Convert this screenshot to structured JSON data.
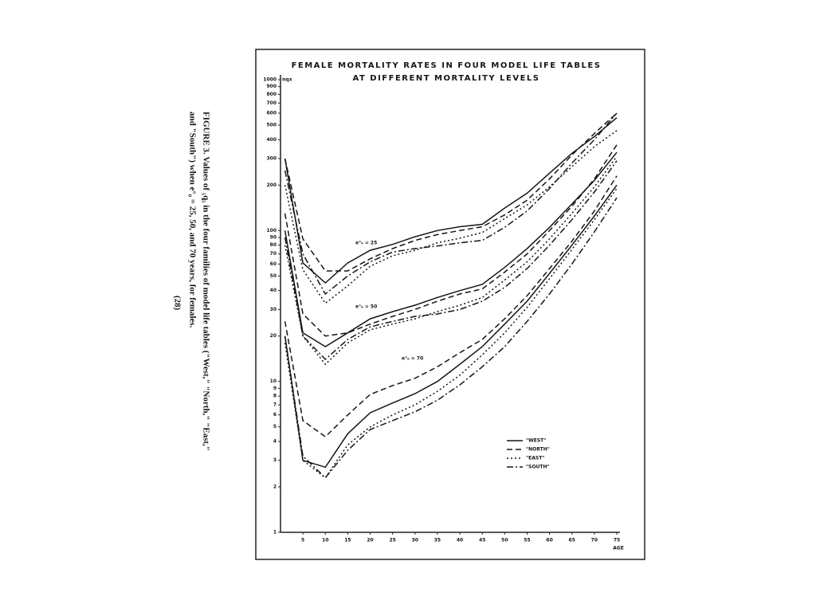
{
  "chart_data": {
    "type": "line",
    "title_lines": [
      "FEMALE MORTALITY RATES IN FOUR MODEL LIFE TABLES",
      "AT DIFFERENT MORTALITY LEVELS"
    ],
    "y_label": "nqx",
    "x_label": "AGE",
    "log_y": true,
    "color": "#151515",
    "xlim": [
      0,
      75
    ],
    "xticks": [
      5,
      10,
      15,
      20,
      25,
      30,
      35,
      40,
      45,
      50,
      55,
      60,
      65,
      70,
      75
    ],
    "ylim": [
      1,
      1000
    ],
    "yticks": [
      1,
      2,
      3,
      4,
      5,
      6,
      7,
      8,
      9,
      10,
      20,
      30,
      40,
      50,
      60,
      70,
      80,
      90,
      100,
      200,
      300,
      400,
      500,
      600,
      700,
      800,
      900,
      1000
    ],
    "x": [
      1,
      5,
      10,
      15,
      20,
      25,
      30,
      35,
      40,
      45,
      50,
      55,
      60,
      65,
      70,
      75
    ],
    "legend": [
      {
        "name": "\"WEST\"",
        "dash": "solid"
      },
      {
        "name": "\"NORTH\"",
        "dash": "7,4"
      },
      {
        "name": "\"EAST\"",
        "dash": "2,3"
      },
      {
        "name": "\"SOUTH\"",
        "dash": "8,3,2,3"
      }
    ],
    "groups": [
      {
        "label": "e°₀ = 25",
        "series": [
          {
            "values": [
              300,
              61,
              45,
              61,
              74,
              81,
              91,
              100,
              106,
              110,
              141,
              177,
              240,
              325,
              420,
              560
            ]
          },
          {
            "values": [
              300,
              88,
              54,
              54,
              65,
              76,
              86,
              94,
              100,
              106,
              127,
              159,
              220,
              317,
              440,
              600
            ]
          },
          {
            "values": [
              200,
              55,
              33,
              43,
              58,
              68,
              74,
              83,
              89,
              97,
              120,
              148,
              195,
              265,
              360,
              460
            ]
          },
          {
            "values": [
              250,
              70,
              38,
              50,
              62,
              72,
              76,
              79,
              83,
              86,
              105,
              135,
              190,
              280,
              400,
              600
            ]
          }
        ]
      },
      {
        "label": "e°₀ = 50",
        "series": [
          {
            "values": [
              100,
              21,
              17,
              21,
              26,
              29,
              32,
              36,
              40,
              44,
              57,
              76,
              105,
              150,
              215,
              330
            ]
          },
          {
            "values": [
              130,
              28,
              20,
              21,
              24,
              27,
              30,
              34,
              38,
              41,
              53,
              70,
              100,
              145,
              220,
              370
            ]
          },
          {
            "values": [
              80,
              20,
              13,
              18,
              22,
              24,
              26,
              29,
              32,
              36,
              47,
              62,
              88,
              130,
              195,
              310
            ]
          },
          {
            "values": [
              90,
              20,
              14,
              19,
              23,
              25,
              27,
              28,
              30,
              34,
              42,
              56,
              80,
              118,
              180,
              290
            ]
          }
        ]
      },
      {
        "label": "e°₀ = 70",
        "series": [
          {
            "values": [
              20,
              3,
              2.7,
              4.5,
              6.2,
              7.2,
              8.3,
              10,
              13,
              17,
              24,
              34,
              52,
              80,
              125,
              200
            ]
          },
          {
            "values": [
              25,
              5.5,
              4.3,
              6,
              8.2,
              9.4,
              10.5,
              12.5,
              15.5,
              19,
              26,
              37,
              56,
              85,
              135,
              230
            ]
          },
          {
            "values": [
              18,
              3,
              2.3,
              3.8,
              5,
              6,
              7,
              8.6,
              11,
              15,
              21,
              31,
              48,
              75,
              118,
              190
            ]
          },
          {
            "values": [
              20,
              3.2,
              2.3,
              3.5,
              4.8,
              5.5,
              6.3,
              7.5,
              9.5,
              12.5,
              17,
              25,
              38,
              60,
              98,
              165
            ]
          }
        ]
      }
    ],
    "caption_lines": [
      "FIGURE 3. Values of ₅q₅ in the four families of model life tables (\"West,\" \"North,\" \"East,\"",
      "and \"South\") when e°₀ = 25, 50, and 70 years, for females.",
      "(28)"
    ]
  }
}
